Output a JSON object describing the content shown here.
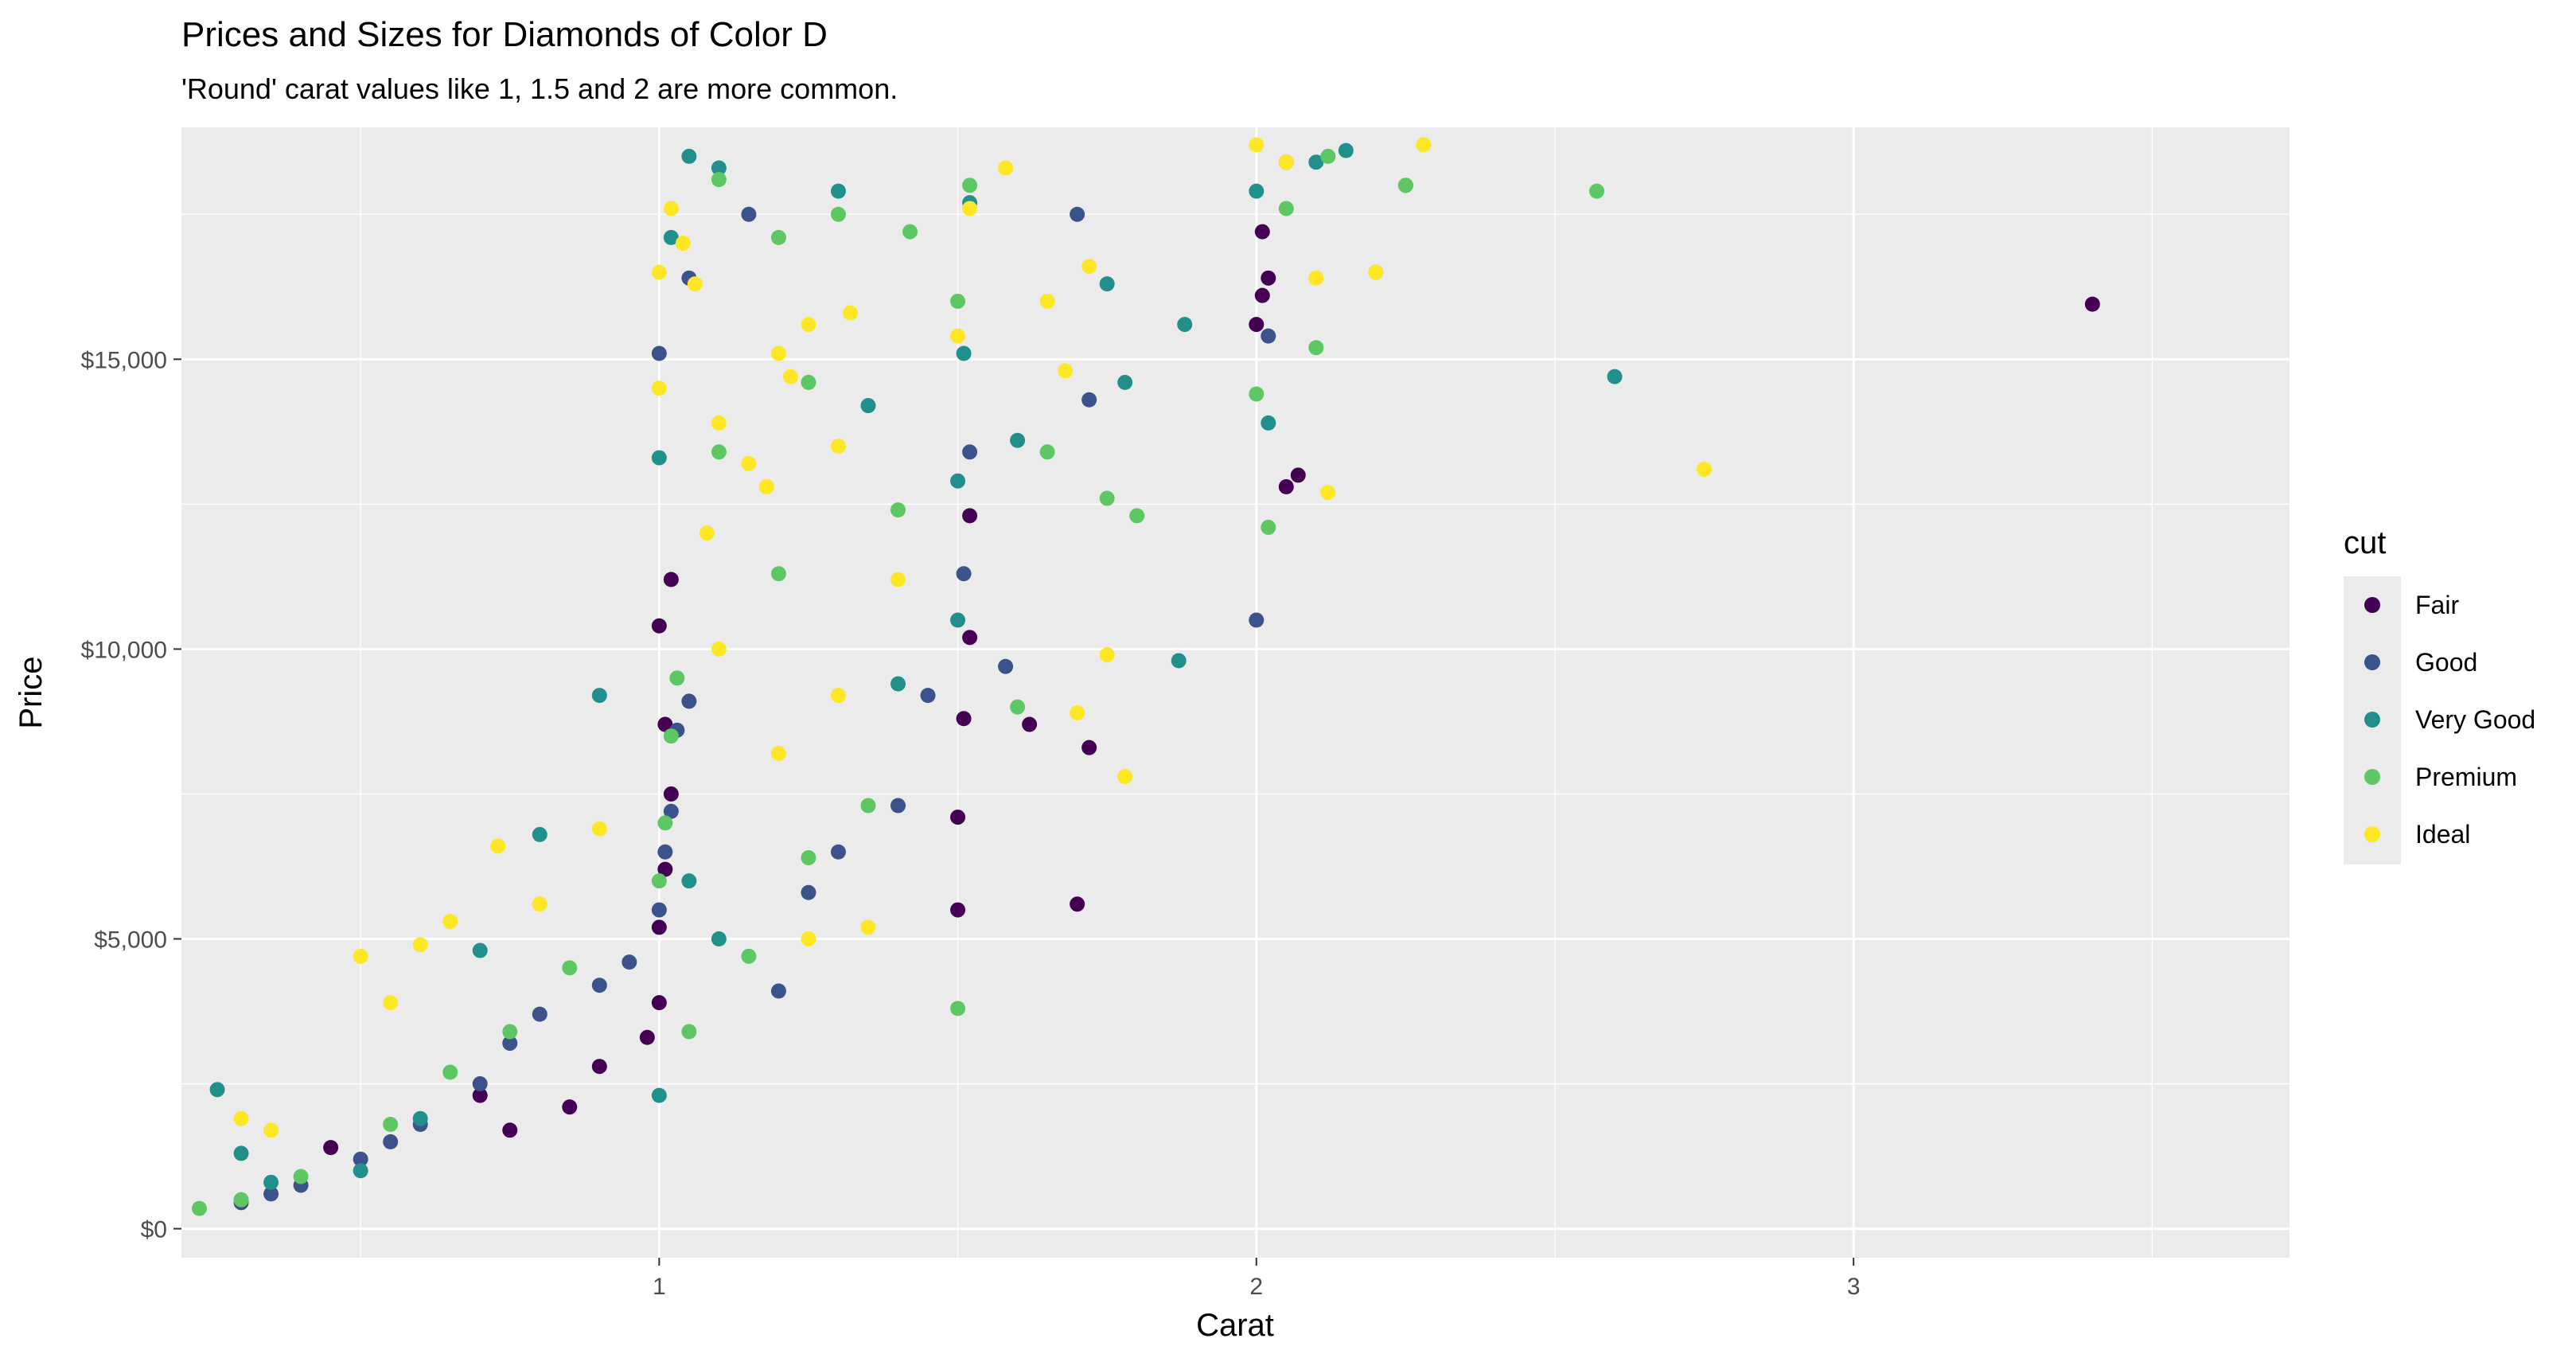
{
  "chart_data": {
    "type": "scatter",
    "title": "Prices and Sizes for Diamonds of Color D",
    "subtitle": "'Round' carat values like 1, 1.5 and 2 are more common.",
    "xlabel": "Carat",
    "ylabel": "Price",
    "xlim": [
      0.2,
      3.73
    ],
    "ylim": [
      -500,
      19000
    ],
    "x_ticks": [
      1,
      2,
      3
    ],
    "x_tick_labels": [
      "1",
      "2",
      "3"
    ],
    "x_minor": [
      0.5,
      1.5,
      2.5,
      3.5
    ],
    "y_ticks": [
      0,
      5000,
      10000,
      15000
    ],
    "y_tick_labels": [
      "$0",
      "$5,000",
      "$10,000",
      "$15,000"
    ],
    "y_minor": [
      2500,
      7500,
      12500,
      17500
    ],
    "grid": true,
    "legend": {
      "title": "cut",
      "placement": "right",
      "entries": [
        "Fair",
        "Good",
        "Very Good",
        "Premium",
        "Ideal"
      ]
    },
    "colors": {
      "Fair": "#440154",
      "Good": "#3b528b",
      "Very Good": "#21908c",
      "Premium": "#5dc863",
      "Ideal": "#fde725",
      "panel": "#ebebeb",
      "grid": "#ffffff"
    },
    "series": [
      {
        "name": "Fair",
        "points": [
          [
            0.45,
            1400
          ],
          [
            0.7,
            2300
          ],
          [
            0.75,
            1700
          ],
          [
            0.85,
            2100
          ],
          [
            0.9,
            2800
          ],
          [
            0.98,
            3300
          ],
          [
            1.0,
            3900
          ],
          [
            1.0,
            5200
          ],
          [
            1.01,
            6200
          ],
          [
            1.02,
            7500
          ],
          [
            1.01,
            8700
          ],
          [
            1.0,
            10400
          ],
          [
            1.02,
            11200
          ],
          [
            1.5,
            5500
          ],
          [
            1.5,
            7100
          ],
          [
            1.51,
            8800
          ],
          [
            1.52,
            10200
          ],
          [
            1.52,
            12300
          ],
          [
            1.62,
            8700
          ],
          [
            1.7,
            5600
          ],
          [
            1.72,
            8300
          ],
          [
            2.0,
            15600
          ],
          [
            2.01,
            16100
          ],
          [
            2.02,
            16400
          ],
          [
            2.01,
            17200
          ],
          [
            2.05,
            12800
          ],
          [
            2.07,
            13000
          ],
          [
            3.4,
            15950
          ]
        ]
      },
      {
        "name": "Good",
        "points": [
          [
            0.3,
            450
          ],
          [
            0.35,
            600
          ],
          [
            0.4,
            750
          ],
          [
            0.5,
            1200
          ],
          [
            0.55,
            1500
          ],
          [
            0.6,
            1800
          ],
          [
            0.7,
            2500
          ],
          [
            0.75,
            3200
          ],
          [
            0.8,
            3700
          ],
          [
            0.9,
            4200
          ],
          [
            0.95,
            4600
          ],
          [
            1.0,
            5500
          ],
          [
            1.01,
            6500
          ],
          [
            1.02,
            7200
          ],
          [
            1.03,
            8600
          ],
          [
            1.05,
            9100
          ],
          [
            1.05,
            16400
          ],
          [
            1.0,
            15100
          ],
          [
            1.15,
            17500
          ],
          [
            1.2,
            4100
          ],
          [
            1.25,
            5800
          ],
          [
            1.3,
            6500
          ],
          [
            1.4,
            7300
          ],
          [
            1.45,
            9200
          ],
          [
            1.51,
            11300
          ],
          [
            1.52,
            13400
          ],
          [
            1.7,
            17500
          ],
          [
            1.72,
            14300
          ],
          [
            2.0,
            10500
          ],
          [
            2.02,
            15400
          ],
          [
            2.05,
            18400
          ],
          [
            1.58,
            9700
          ]
        ]
      },
      {
        "name": "Very Good",
        "points": [
          [
            0.26,
            2400
          ],
          [
            0.3,
            1300
          ],
          [
            0.35,
            800
          ],
          [
            0.5,
            1000
          ],
          [
            0.6,
            1900
          ],
          [
            0.7,
            4800
          ],
          [
            0.8,
            6800
          ],
          [
            0.9,
            9200
          ],
          [
            1.0,
            2300
          ],
          [
            1.0,
            13300
          ],
          [
            1.02,
            17100
          ],
          [
            1.05,
            18500
          ],
          [
            1.1,
            18300
          ],
          [
            1.3,
            17900
          ],
          [
            1.5,
            12900
          ],
          [
            1.51,
            15100
          ],
          [
            1.52,
            17700
          ],
          [
            1.6,
            13600
          ],
          [
            1.75,
            16300
          ],
          [
            1.78,
            14600
          ],
          [
            1.87,
            9800
          ],
          [
            1.88,
            15600
          ],
          [
            2.0,
            17900
          ],
          [
            2.02,
            13900
          ],
          [
            2.1,
            18400
          ],
          [
            2.15,
            18600
          ],
          [
            2.25,
            18000
          ],
          [
            2.6,
            14700
          ],
          [
            1.5,
            10500
          ],
          [
            1.4,
            9400
          ],
          [
            1.35,
            14200
          ],
          [
            1.05,
            6000
          ],
          [
            1.1,
            5000
          ]
        ]
      },
      {
        "name": "Premium",
        "points": [
          [
            0.23,
            350
          ],
          [
            0.3,
            500
          ],
          [
            0.4,
            900
          ],
          [
            0.55,
            1800
          ],
          [
            0.65,
            2700
          ],
          [
            0.75,
            3400
          ],
          [
            0.85,
            4500
          ],
          [
            1.0,
            6000
          ],
          [
            1.01,
            7000
          ],
          [
            1.02,
            8500
          ],
          [
            1.03,
            9500
          ],
          [
            1.1,
            18100
          ],
          [
            1.2,
            17100
          ],
          [
            1.25,
            14600
          ],
          [
            1.3,
            17500
          ],
          [
            1.4,
            12400
          ],
          [
            1.42,
            17200
          ],
          [
            1.5,
            3800
          ],
          [
            1.5,
            16000
          ],
          [
            1.52,
            18000
          ],
          [
            1.6,
            9000
          ],
          [
            1.65,
            13400
          ],
          [
            1.75,
            12600
          ],
          [
            1.8,
            12300
          ],
          [
            2.0,
            14400
          ],
          [
            2.02,
            12100
          ],
          [
            2.05,
            17600
          ],
          [
            2.1,
            15200
          ],
          [
            2.12,
            18500
          ],
          [
            2.2,
            16500
          ],
          [
            2.25,
            18000
          ],
          [
            2.57,
            17900
          ],
          [
            1.35,
            7300
          ],
          [
            1.25,
            6400
          ],
          [
            1.15,
            4700
          ],
          [
            1.05,
            3400
          ],
          [
            1.2,
            11300
          ],
          [
            1.1,
            13400
          ]
        ]
      },
      {
        "name": "Ideal",
        "points": [
          [
            0.3,
            1900
          ],
          [
            0.35,
            1700
          ],
          [
            0.5,
            4700
          ],
          [
            0.55,
            3900
          ],
          [
            0.6,
            4900
          ],
          [
            0.65,
            5300
          ],
          [
            0.73,
            6600
          ],
          [
            0.8,
            5600
          ],
          [
            0.9,
            6900
          ],
          [
            1.0,
            14500
          ],
          [
            1.0,
            16500
          ],
          [
            1.02,
            17600
          ],
          [
            1.04,
            17000
          ],
          [
            1.06,
            16300
          ],
          [
            1.1,
            13900
          ],
          [
            1.15,
            13200
          ],
          [
            1.2,
            15100
          ],
          [
            1.22,
            14700
          ],
          [
            1.25,
            15600
          ],
          [
            1.3,
            13500
          ],
          [
            1.32,
            15800
          ],
          [
            1.5,
            15400
          ],
          [
            1.52,
            17600
          ],
          [
            1.58,
            18300
          ],
          [
            1.65,
            16000
          ],
          [
            1.68,
            14800
          ],
          [
            1.7,
            8900
          ],
          [
            1.72,
            16600
          ],
          [
            1.75,
            9900
          ],
          [
            1.78,
            7800
          ],
          [
            2.0,
            18700
          ],
          [
            2.05,
            18400
          ],
          [
            2.1,
            16400
          ],
          [
            2.12,
            12700
          ],
          [
            2.2,
            16500
          ],
          [
            2.28,
            18700
          ],
          [
            2.75,
            13100
          ],
          [
            1.2,
            8200
          ],
          [
            1.3,
            9200
          ],
          [
            1.4,
            11200
          ],
          [
            1.1,
            10000
          ],
          [
            1.25,
            5000
          ],
          [
            1.35,
            5200
          ],
          [
            1.18,
            12800
          ],
          [
            1.08,
            12000
          ]
        ]
      }
    ]
  }
}
